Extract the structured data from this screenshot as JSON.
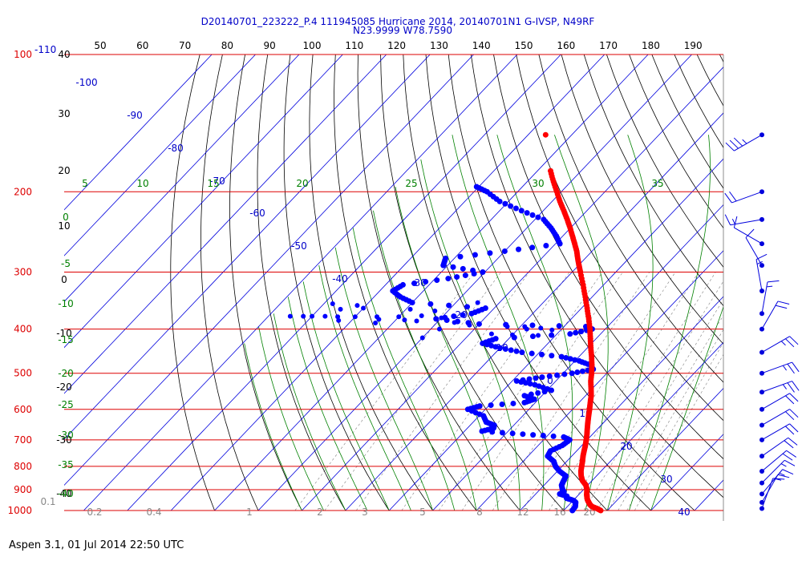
{
  "header": {
    "title_line1": "D20140701_223222_P.4 111945085 Hurricane 2014, 20140701N1 G-IVSP, N49RF",
    "title_line2": "N23.9999 W78.7590"
  },
  "footer": {
    "text": "Aspen 3.1, 01 Jul 2014  22:50 UTC"
  },
  "colors": {
    "isobar": "#dd0000",
    "isotherm": "#0000dd",
    "dry_adiabat": "#000000",
    "moist_adiabat": "#008000",
    "mixing_ratio": "#808080",
    "temperature": "#ff0000",
    "dewpoint": "#0000ff",
    "fahrenheit_labels": "#000000"
  },
  "chart_data": {
    "type": "skew-t log-p",
    "x_axis": "Temperature (°C, skewed)",
    "y_axis": "Pressure (hPa, log scale)",
    "pressure_labels": [
      "100",
      "200",
      "300",
      "400",
      "500",
      "600",
      "700",
      "800",
      "900",
      "1000"
    ],
    "pressure_extra_label": "-110",
    "fahrenheit_labels": [
      "40",
      "30",
      "20",
      "10",
      "0",
      "-10",
      "-20",
      "-30",
      "-40"
    ],
    "top_temperature_labels": [
      "50",
      "60",
      "70",
      "80",
      "90",
      "100",
      "110",
      "120",
      "130",
      "140",
      "150",
      "160",
      "170",
      "180",
      "190"
    ],
    "isotherm_labels": [
      "-100",
      "-90",
      "-80",
      "-70",
      "-60",
      "-50",
      "-40",
      "-30",
      "-20",
      "-10",
      "0",
      "10",
      "20",
      "30",
      "40"
    ],
    "moist_adiabat_labels": [
      "5",
      "10",
      "15",
      "20",
      "25",
      "30",
      "35"
    ],
    "left_moist_labels": [
      "0",
      "-5",
      "-10",
      "-15",
      "-20",
      "-25",
      "-30",
      "-35",
      "-40"
    ],
    "mixing_ratio_labels": [
      "0.1",
      "0.2",
      "0.4",
      "1",
      "2",
      "3",
      "5",
      "8",
      "12",
      "16",
      "20"
    ],
    "temperature_profile": [
      {
        "p": 1000,
        "t": 28.5
      },
      {
        "p": 990,
        "t": 27.2
      },
      {
        "p": 980,
        "t": 25.6
      },
      {
        "p": 970,
        "t": 24.7
      },
      {
        "p": 960,
        "t": 24.0
      },
      {
        "p": 950,
        "t": 23.3
      },
      {
        "p": 940,
        "t": 22.7
      },
      {
        "p": 930,
        "t": 22.2
      },
      {
        "p": 920,
        "t": 21.7
      },
      {
        "p": 900,
        "t": 20.8
      },
      {
        "p": 880,
        "t": 19.6
      },
      {
        "p": 860,
        "t": 17.8
      },
      {
        "p": 840,
        "t": 16.5
      },
      {
        "p": 820,
        "t": 15.4
      },
      {
        "p": 800,
        "t": 14.5
      },
      {
        "p": 780,
        "t": 13.6
      },
      {
        "p": 760,
        "t": 12.6
      },
      {
        "p": 740,
        "t": 11.7
      },
      {
        "p": 720,
        "t": 10.8
      },
      {
        "p": 700,
        "t": 9.8
      },
      {
        "p": 680,
        "t": 8.7
      },
      {
        "p": 660,
        "t": 7.5
      },
      {
        "p": 640,
        "t": 6.3
      },
      {
        "p": 620,
        "t": 5.1
      },
      {
        "p": 600,
        "t": 3.9
      },
      {
        "p": 580,
        "t": 2.6
      },
      {
        "p": 560,
        "t": 1.3
      },
      {
        "p": 540,
        "t": -0.3
      },
      {
        "p": 520,
        "t": -2.0
      },
      {
        "p": 500,
        "t": -3.5
      },
      {
        "p": 480,
        "t": -5.2
      },
      {
        "p": 460,
        "t": -7.1
      },
      {
        "p": 440,
        "t": -9.2
      },
      {
        "p": 420,
        "t": -11.3
      },
      {
        "p": 400,
        "t": -13.5
      },
      {
        "p": 380,
        "t": -16.0
      },
      {
        "p": 360,
        "t": -18.7
      },
      {
        "p": 340,
        "t": -21.6
      },
      {
        "p": 320,
        "t": -24.7
      },
      {
        "p": 300,
        "t": -28.1
      },
      {
        "p": 290,
        "t": -29.9
      },
      {
        "p": 280,
        "t": -31.7
      },
      {
        "p": 270,
        "t": -33.5
      },
      {
        "p": 260,
        "t": -35.6
      },
      {
        "p": 250,
        "t": -37.8
      },
      {
        "p": 240,
        "t": -40.1
      },
      {
        "p": 230,
        "t": -42.6
      },
      {
        "p": 220,
        "t": -45.3
      },
      {
        "p": 210,
        "t": -48.2
      },
      {
        "p": 200,
        "t": -51.0
      },
      {
        "p": 190,
        "t": -54.0
      },
      {
        "p": 180,
        "t": -57.0
      }
    ],
    "temperature_isolated_point": {
      "p": 150,
      "t": -66.0
    },
    "dewpoint_profile": [
      {
        "p": 1000,
        "td": 22.0
      },
      {
        "p": 980,
        "td": 21.8
      },
      {
        "p": 960,
        "td": 21.0
      },
      {
        "p": 950,
        "td": 20.0
      },
      {
        "p": 940,
        "td": 18.0
      },
      {
        "p": 930,
        "td": 17.6
      },
      {
        "p": 920,
        "td": 15.5
      },
      {
        "p": 910,
        "td": 16.0
      },
      {
        "p": 900,
        "td": 15.2
      },
      {
        "p": 880,
        "td": 14.0
      },
      {
        "p": 860,
        "td": 13.5
      },
      {
        "p": 840,
        "td": 13.0
      },
      {
        "p": 820,
        "td": 10.5
      },
      {
        "p": 800,
        "td": 8.5
      },
      {
        "p": 780,
        "td": 7.0
      },
      {
        "p": 760,
        "td": 4.5
      },
      {
        "p": 740,
        "td": 4.0
      },
      {
        "p": 720,
        "td": 5.5
      },
      {
        "p": 700,
        "td": 6.0
      },
      {
        "p": 690,
        "td": 4.0
      },
      {
        "p": 680,
        "td": -6.0
      },
      {
        "p": 670,
        "td": -16.0
      },
      {
        "p": 660,
        "td": -14.0
      },
      {
        "p": 650,
        "td": -14.5
      },
      {
        "p": 640,
        "td": -17.0
      },
      {
        "p": 620,
        "td": -19.0
      },
      {
        "p": 600,
        "td": -24.0
      },
      {
        "p": 590,
        "td": -22.0
      },
      {
        "p": 580,
        "td": -12.5
      },
      {
        "p": 570,
        "td": -11.0
      },
      {
        "p": 560,
        "td": -14.0
      },
      {
        "p": 545,
        "td": -9.0
      },
      {
        "p": 530,
        "td": -14.0
      },
      {
        "p": 520,
        "td": -19.0
      },
      {
        "p": 510,
        "td": -14.0
      },
      {
        "p": 500,
        "td": -8.0
      },
      {
        "p": 490,
        "td": -4.0
      },
      {
        "p": 480,
        "td": -5.5
      },
      {
        "p": 470,
        "td": -9.0
      },
      {
        "p": 460,
        "td": -14.0
      },
      {
        "p": 450,
        "td": -24.0
      },
      {
        "p": 440,
        "td": -30.0
      },
      {
        "p": 430,
        "td": -35.0
      },
      {
        "p": 420,
        "td": -33.0
      },
      {
        "p": 410,
        "td": -17.0
      },
      {
        "p": 400,
        "td": -13.0
      },
      {
        "p": 395,
        "td": -15.0
      },
      {
        "p": 390,
        "td": -40.0
      },
      {
        "p": 380,
        "td": -51.0
      },
      {
        "p": 370,
        "td": -44.0
      },
      {
        "p": 360,
        "td": -42.0
      },
      {
        "p": 350,
        "td": -60.0
      },
      {
        "p": 340,
        "td": -64.0
      },
      {
        "p": 330,
        "td": -67.0
      },
      {
        "p": 320,
        "td": -66.0
      },
      {
        "p": 310,
        "td": -57.0
      },
      {
        "p": 300,
        "td": -50.5
      },
      {
        "p": 290,
        "td": -61.0
      },
      {
        "p": 280,
        "td": -62.0
      },
      {
        "p": 270,
        "td": -50.0
      },
      {
        "p": 260,
        "td": -39.0
      },
      {
        "p": 250,
        "td": -41.5
      },
      {
        "p": 240,
        "td": -44.5
      },
      {
        "p": 230,
        "td": -48.0
      },
      {
        "p": 220,
        "td": -55.0
      },
      {
        "p": 210,
        "td": -62.0
      },
      {
        "p": 200,
        "td": -67.0
      },
      {
        "p": 195,
        "td": -70.5
      }
    ],
    "dewpoint_sparse_points": [
      {
        "p": 375,
        "td": -85
      },
      {
        "p": 375,
        "td": -82
      },
      {
        "p": 375,
        "td": -80
      },
      {
        "p": 375,
        "td": -77
      },
      {
        "p": 376,
        "td": -74
      },
      {
        "p": 376,
        "td": -70
      },
      {
        "p": 376,
        "td": -65
      },
      {
        "p": 376,
        "td": -60
      },
      {
        "p": 374,
        "td": -55
      },
      {
        "p": 378,
        "td": -50
      },
      {
        "p": 383,
        "td": -73
      },
      {
        "p": 388,
        "td": -64
      },
      {
        "p": 381,
        "td": -64
      },
      {
        "p": 382,
        "td": -58
      },
      {
        "p": 384,
        "td": -55
      },
      {
        "p": 387,
        "td": -46
      },
      {
        "p": 395,
        "td": -33
      },
      {
        "p": 395,
        "td": -29
      },
      {
        "p": 400,
        "td": -28
      },
      {
        "p": 402,
        "td": -22
      },
      {
        "p": 398,
        "td": -25
      },
      {
        "p": 410,
        "td": -35
      },
      {
        "p": 412,
        "td": -30
      },
      {
        "p": 413,
        "td": -24
      },
      {
        "p": 418,
        "td": -50
      },
      {
        "p": 360,
        "td": -70
      },
      {
        "p": 362,
        "td": -75
      },
      {
        "p": 355,
        "td": -72
      },
      {
        "p": 352,
        "td": -78
      },
      {
        "p": 365,
        "td": -53
      },
      {
        "p": 362,
        "td": -59
      },
      {
        "p": 350,
        "td": -45
      },
      {
        "p": 392,
        "td": -42
      },
      {
        "p": 400,
        "td": -48
      }
    ],
    "wind_barbs": [
      {
        "p": 150,
        "dir": 240,
        "spd": 35
      },
      {
        "p": 200,
        "dir": 250,
        "spd": 20
      },
      {
        "p": 230,
        "dir": 260,
        "spd": 15
      },
      {
        "p": 260,
        "dir": 300,
        "spd": 10
      },
      {
        "p": 290,
        "dir": 330,
        "spd": 10
      },
      {
        "p": 330,
        "dir": 350,
        "spd": 15
      },
      {
        "p": 370,
        "dir": 10,
        "spd": 15
      },
      {
        "p": 400,
        "dir": 30,
        "spd": 20
      },
      {
        "p": 450,
        "dir": 60,
        "spd": 25
      },
      {
        "p": 500,
        "dir": 70,
        "spd": 25
      },
      {
        "p": 550,
        "dir": 70,
        "spd": 25
      },
      {
        "p": 600,
        "dir": 60,
        "spd": 20
      },
      {
        "p": 650,
        "dir": 60,
        "spd": 20
      },
      {
        "p": 700,
        "dir": 60,
        "spd": 20
      },
      {
        "p": 760,
        "dir": 55,
        "spd": 20
      },
      {
        "p": 820,
        "dir": 50,
        "spd": 20
      },
      {
        "p": 870,
        "dir": 45,
        "spd": 15
      },
      {
        "p": 920,
        "dir": 40,
        "spd": 15
      },
      {
        "p": 960,
        "dir": 30,
        "spd": 15
      },
      {
        "p": 990,
        "dir": 20,
        "spd": 10
      }
    ]
  }
}
